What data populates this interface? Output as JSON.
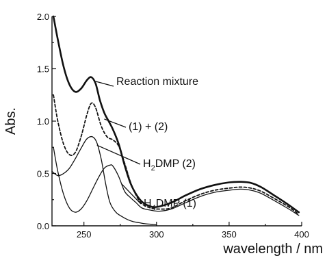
{
  "chart_data": {
    "type": "line",
    "title": "",
    "xlabel": "wavelength / nm",
    "ylabel": "Abs.",
    "xlim": [
      228,
      400
    ],
    "ylim": [
      0,
      2.0
    ],
    "x_ticks": [
      250,
      300,
      350,
      400
    ],
    "x_tick_labels": [
      "250",
      "300",
      "350",
      "400"
    ],
    "y_ticks": [
      0,
      0.5,
      1.0,
      1.5,
      2.0
    ],
    "y_tick_labels": [
      "0.0",
      "0.5",
      "1.0",
      "1.5",
      "2.0"
    ],
    "grid": false,
    "legend": "none",
    "series": [
      {
        "name": "Reaction mixture",
        "style": "solid-thick",
        "color": "#111111",
        "x": [
          229,
          232,
          236,
          240,
          244,
          248,
          252,
          255,
          258,
          261,
          264,
          267,
          270,
          274,
          278,
          282,
          286,
          290,
          295,
          300,
          310,
          320,
          330,
          340,
          350,
          358,
          365,
          372,
          380,
          390,
          398
        ],
        "y": [
          2.0,
          1.78,
          1.52,
          1.35,
          1.28,
          1.31,
          1.39,
          1.42,
          1.36,
          1.2,
          1.08,
          1.0,
          0.92,
          0.78,
          0.58,
          0.41,
          0.3,
          0.23,
          0.19,
          0.18,
          0.22,
          0.29,
          0.35,
          0.39,
          0.415,
          0.42,
          0.41,
          0.37,
          0.3,
          0.21,
          0.13
        ]
      },
      {
        "name": "(1) + (2)",
        "style": "dashed",
        "color": "#111111",
        "x": [
          229,
          232,
          236,
          240,
          244,
          248,
          252,
          255,
          258,
          262,
          266,
          270,
          274,
          278,
          282,
          286,
          290,
          296,
          302,
          310,
          320,
          330,
          340,
          350,
          358,
          365,
          372,
          380,
          390,
          398
        ],
        "y": [
          1.25,
          1.0,
          0.78,
          0.68,
          0.7,
          0.85,
          1.06,
          1.17,
          1.13,
          0.95,
          0.85,
          0.82,
          0.76,
          0.6,
          0.42,
          0.29,
          0.21,
          0.17,
          0.16,
          0.17,
          0.24,
          0.3,
          0.34,
          0.36,
          0.37,
          0.36,
          0.33,
          0.27,
          0.19,
          0.11
        ]
      },
      {
        "name": "H2DMP (2)",
        "style": "solid",
        "color": "#111111",
        "x": [
          228,
          232,
          236,
          240,
          244,
          248,
          252,
          256,
          259,
          262,
          265,
          268,
          272,
          276,
          280,
          284,
          288,
          292,
          296,
          300
        ],
        "y": [
          0.52,
          0.48,
          0.5,
          0.55,
          0.64,
          0.74,
          0.83,
          0.85,
          0.79,
          0.63,
          0.4,
          0.22,
          0.13,
          0.09,
          0.06,
          0.04,
          0.03,
          0.02,
          0.015,
          0.01
        ]
      },
      {
        "name": "H4DMP (1)",
        "style": "solid",
        "color": "#111111",
        "x": [
          229,
          232,
          236,
          240,
          244,
          248,
          252,
          256,
          260,
          264,
          268,
          270,
          274,
          278,
          282,
          286,
          290,
          296,
          302,
          310,
          320,
          330,
          340,
          350,
          358,
          365,
          372,
          380,
          390,
          398
        ],
        "y": [
          0.75,
          0.52,
          0.3,
          0.17,
          0.13,
          0.16,
          0.24,
          0.35,
          0.46,
          0.55,
          0.58,
          0.57,
          0.47,
          0.33,
          0.27,
          0.22,
          0.17,
          0.15,
          0.14,
          0.16,
          0.22,
          0.28,
          0.32,
          0.34,
          0.35,
          0.34,
          0.31,
          0.25,
          0.17,
          0.1
        ]
      }
    ],
    "annotations": [
      {
        "name": "reaction-mixture-label",
        "text": "Reaction mixture",
        "points_to_series": 0,
        "at_x": 258,
        "at_y": 1.38
      },
      {
        "name": "sum-label",
        "text": "(1) + (2)",
        "points_to_series": 1,
        "at_x": 264,
        "at_y": 1.02
      },
      {
        "name": "h2dmp-label",
        "text_main": "H",
        "text_sub": "2",
        "text_rest": "DMP (2)",
        "points_to_series": 2,
        "at_x": 259,
        "at_y": 0.77
      },
      {
        "name": "h4dmp-label",
        "text_main": "H",
        "text_sub": "4",
        "text_rest": "DMP (1)",
        "points_to_series": 3,
        "at_x": 276,
        "at_y": 0.4
      }
    ]
  }
}
